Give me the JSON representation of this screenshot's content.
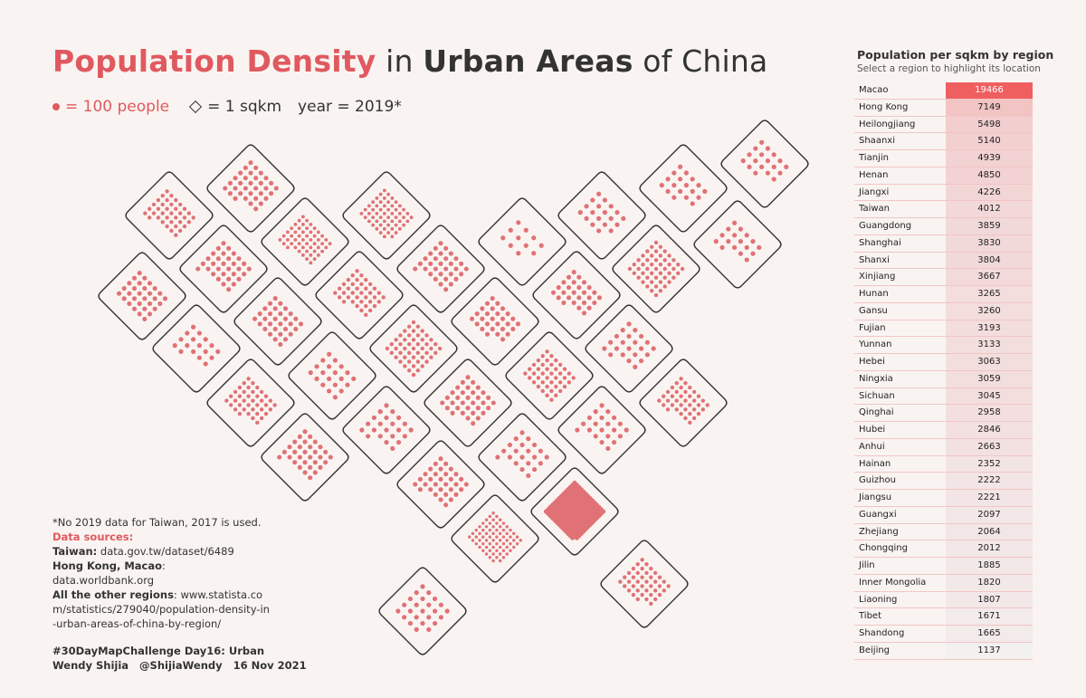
{
  "title": {
    "part1": "Population Density",
    "part2": " in ",
    "part3": "Urban Areas",
    "part4": " of China"
  },
  "legend": {
    "dot_label": "= 100 people",
    "diamond_label": "= 1 sqkm",
    "year_label": "year = 2019*"
  },
  "notes": {
    "footnote": "*No 2019 data for Taiwan,  2017 is used.",
    "sources_heading": "Data sources:",
    "taiwan_label": "Taiwan:",
    "taiwan_source": " data.gov.tw/dataset/6489",
    "hk_label": "Hong Kong, Macao",
    "hk_source": ": data.worldbank.org",
    "other_label": "All the other regions",
    "other_source": ": www.statista.com/statistics/279040/population-density-in-urban-areas-of-china-by-region/",
    "hashtag": "#30DayMapChallenge Day16: Urban",
    "credit": "Wendy Shijia   @ShijiaWendy   16 Nov 2021"
  },
  "panel": {
    "title": "Population per sqkm by region",
    "subtitle": "Select a region to highlight its location"
  },
  "colors": {
    "accent": "#e0595f",
    "dot": "#e07276",
    "background": "#f9f4f1",
    "text": "#333333"
  },
  "chart_data": {
    "type": "table",
    "unit": "people per sqkm",
    "highlighted": "Macao",
    "regions": [
      {
        "name": "Macao",
        "value": 19466
      },
      {
        "name": "Hong Kong",
        "value": 7149
      },
      {
        "name": "Heilongjiang",
        "value": 5498
      },
      {
        "name": "Shaanxi",
        "value": 5140
      },
      {
        "name": "Tianjin",
        "value": 4939
      },
      {
        "name": "Henan",
        "value": 4850
      },
      {
        "name": "Jiangxi",
        "value": 4226
      },
      {
        "name": "Taiwan",
        "value": 4012
      },
      {
        "name": "Guangdong",
        "value": 3859
      },
      {
        "name": "Shanghai",
        "value": 3830
      },
      {
        "name": "Shanxi",
        "value": 3804
      },
      {
        "name": "Xinjiang",
        "value": 3667
      },
      {
        "name": "Hunan",
        "value": 3265
      },
      {
        "name": "Gansu",
        "value": 3260
      },
      {
        "name": "Fujian",
        "value": 3193
      },
      {
        "name": "Yunnan",
        "value": 3133
      },
      {
        "name": "Hebei",
        "value": 3063
      },
      {
        "name": "Ningxia",
        "value": 3059
      },
      {
        "name": "Sichuan",
        "value": 3045
      },
      {
        "name": "Qinghai",
        "value": 2958
      },
      {
        "name": "Hubei",
        "value": 2846
      },
      {
        "name": "Anhui",
        "value": 2663
      },
      {
        "name": "Hainan",
        "value": 2352
      },
      {
        "name": "Guizhou",
        "value": 2222
      },
      {
        "name": "Jiangsu",
        "value": 2221
      },
      {
        "name": "Guangxi",
        "value": 2097
      },
      {
        "name": "Zhejiang",
        "value": 2064
      },
      {
        "name": "Chongqing",
        "value": 2012
      },
      {
        "name": "Jilin",
        "value": 1885
      },
      {
        "name": "Inner Mongolia",
        "value": 1820
      },
      {
        "name": "Liaoning",
        "value": 1807
      },
      {
        "name": "Tibet",
        "value": 1671
      },
      {
        "name": "Shandong",
        "value": 1665
      },
      {
        "name": "Beijing",
        "value": 1137
      }
    ]
  }
}
